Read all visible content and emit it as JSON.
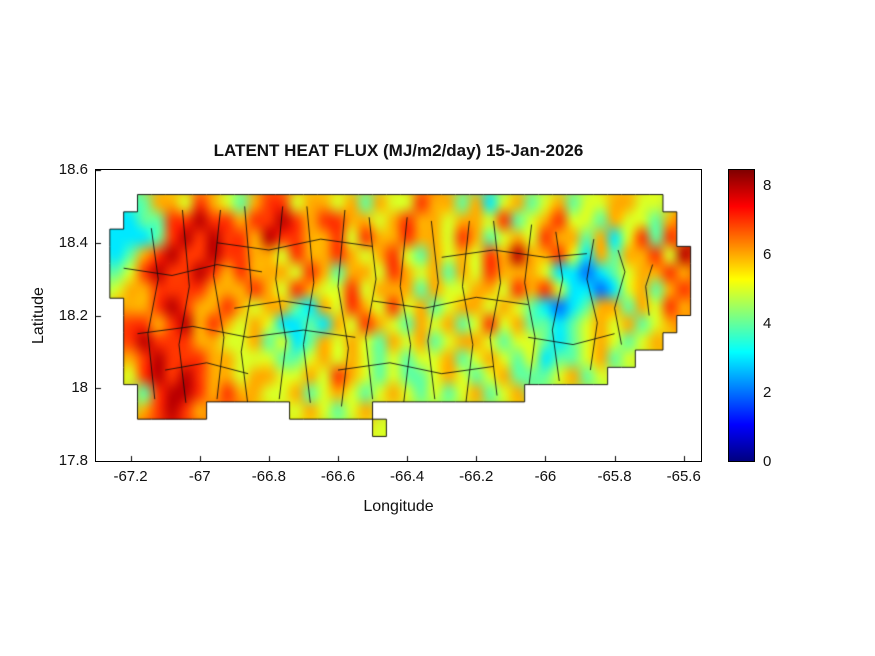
{
  "chart_data": {
    "type": "heatmap",
    "title": "LATENT HEAT FLUX (MJ/m2/day) 15-Jan-2026",
    "xlabel": "Longitude",
    "ylabel": "Latitude",
    "xlim": [
      -67.3,
      -65.55
    ],
    "ylim": [
      17.8,
      18.6
    ],
    "xticks": [
      -67.2,
      -67.0,
      -66.8,
      -66.6,
      -66.4,
      -66.2,
      -66.0,
      -65.8,
      -65.6
    ],
    "xtick_labels": [
      "-67.2",
      "-67",
      "-66.8",
      "-66.6",
      "-66.4",
      "-66.2",
      "-66",
      "-65.8",
      "-65.6"
    ],
    "yticks": [
      17.8,
      18.0,
      18.2,
      18.4,
      18.6
    ],
    "ytick_labels": [
      "17.8",
      "18",
      "18.2",
      "18.4",
      "18.6"
    ],
    "colorbar": {
      "min": 0,
      "max": 8.5,
      "ticks": [
        0,
        2,
        4,
        6,
        8
      ],
      "tick_labels": [
        "0",
        "2",
        "4",
        "6",
        "8"
      ]
    },
    "colormap": "jet",
    "colormap_stops": [
      [
        0,
        0,
        0,
        0.5
      ],
      [
        0.125,
        0,
        0,
        1
      ],
      [
        0.375,
        0,
        1,
        1
      ],
      [
        0.625,
        1,
        1,
        0
      ],
      [
        0.875,
        1,
        0,
        0
      ],
      [
        1,
        0.5,
        0,
        0
      ]
    ],
    "grid": {
      "lon_min": -67.3,
      "lon_max": -65.54,
      "lat_min": 17.82,
      "lat_max": 18.58,
      "cols": 44,
      "rows": 16,
      "encoding": "each char = flux value 0-8 (MJ/m2/day), '.' or missing = sea/no data, row 0 = northernmost",
      "values": [
        "",
        "...46657654677566564655766463564564556655",
        "..3447787767787677665676656657456755465546",
        ".33347878776877667576676657645657664635747",
        ".346787787766576676567546565768667536466758",
        ".457877876766657646657656465766653323456676",
        ".566777766676576557566646556657675332356467",
        "..66787667656643657657564566565432346646576",
        "..7767867656533436576546564575644345656456",
        "..787776655645346565465645665455434565456",
        "..6787776655544565654545564565453445645",
        "..57878766566556576545445654564445645",
        "...4788767665564565456545456456",
        "...67876......565456",
        "....................5",
        ""
      ]
    },
    "boundaries": [
      [
        [
          -67.13,
          17.97
        ],
        [
          -67.15,
          18.15
        ],
        [
          -67.12,
          18.3
        ],
        [
          -67.14,
          18.44
        ]
      ],
      [
        [
          -67.04,
          17.96
        ],
        [
          -67.06,
          18.12
        ],
        [
          -67.03,
          18.28
        ],
        [
          -67.05,
          18.49
        ]
      ],
      [
        [
          -66.95,
          17.97
        ],
        [
          -66.93,
          18.14
        ],
        [
          -66.96,
          18.31
        ],
        [
          -66.94,
          18.49
        ]
      ],
      [
        [
          -66.86,
          17.95
        ],
        [
          -66.88,
          18.1
        ],
        [
          -66.85,
          18.27
        ],
        [
          -66.87,
          18.5
        ]
      ],
      [
        [
          -66.77,
          17.97
        ],
        [
          -66.75,
          18.13
        ],
        [
          -66.78,
          18.3
        ],
        [
          -66.76,
          18.5
        ]
      ],
      [
        [
          -66.68,
          17.96
        ],
        [
          -66.7,
          18.12
        ],
        [
          -66.67,
          18.29
        ],
        [
          -66.69,
          18.5
        ]
      ],
      [
        [
          -66.59,
          17.95
        ],
        [
          -66.57,
          18.11
        ],
        [
          -66.6,
          18.28
        ],
        [
          -66.58,
          18.49
        ]
      ],
      [
        [
          -66.5,
          17.97
        ],
        [
          -66.52,
          18.14
        ],
        [
          -66.49,
          18.3
        ],
        [
          -66.51,
          18.47
        ]
      ],
      [
        [
          -66.41,
          17.96
        ],
        [
          -66.39,
          18.12
        ],
        [
          -66.42,
          18.28
        ],
        [
          -66.4,
          18.47
        ]
      ],
      [
        [
          -66.32,
          17.97
        ],
        [
          -66.34,
          18.13
        ],
        [
          -66.31,
          18.29
        ],
        [
          -66.33,
          18.46
        ]
      ],
      [
        [
          -66.23,
          17.96
        ],
        [
          -66.21,
          18.12
        ],
        [
          -66.24,
          18.28
        ],
        [
          -66.22,
          18.46
        ]
      ],
      [
        [
          -66.14,
          17.98
        ],
        [
          -66.16,
          18.14
        ],
        [
          -66.13,
          18.29
        ],
        [
          -66.15,
          18.46
        ]
      ],
      [
        [
          -66.05,
          17.99
        ],
        [
          -66.03,
          18.14
        ],
        [
          -66.06,
          18.29
        ],
        [
          -66.04,
          18.45
        ]
      ],
      [
        [
          -65.96,
          18.02
        ],
        [
          -65.98,
          18.16
        ],
        [
          -65.95,
          18.3
        ],
        [
          -65.97,
          18.43
        ]
      ],
      [
        [
          -65.87,
          18.05
        ],
        [
          -65.85,
          18.18
        ],
        [
          -65.88,
          18.3
        ],
        [
          -65.86,
          18.41
        ]
      ],
      [
        [
          -65.78,
          18.12
        ],
        [
          -65.8,
          18.22
        ],
        [
          -65.77,
          18.32
        ],
        [
          -65.79,
          18.38
        ]
      ],
      [
        [
          -65.7,
          18.2
        ],
        [
          -65.71,
          18.28
        ],
        [
          -65.69,
          18.34
        ]
      ],
      [
        [
          -67.22,
          18.33
        ],
        [
          -67.08,
          18.31
        ],
        [
          -66.95,
          18.34
        ],
        [
          -66.82,
          18.32
        ]
      ],
      [
        [
          -67.18,
          18.15
        ],
        [
          -67.02,
          18.17
        ],
        [
          -66.86,
          18.14
        ],
        [
          -66.7,
          18.16
        ],
        [
          -66.55,
          18.14
        ]
      ],
      [
        [
          -66.95,
          18.4
        ],
        [
          -66.8,
          18.38
        ],
        [
          -66.65,
          18.41
        ],
        [
          -66.5,
          18.39
        ]
      ],
      [
        [
          -66.6,
          18.05
        ],
        [
          -66.45,
          18.07
        ],
        [
          -66.3,
          18.04
        ],
        [
          -66.15,
          18.06
        ]
      ],
      [
        [
          -66.5,
          18.24
        ],
        [
          -66.35,
          18.22
        ],
        [
          -66.2,
          18.25
        ],
        [
          -66.05,
          18.23
        ]
      ],
      [
        [
          -66.3,
          18.36
        ],
        [
          -66.15,
          18.38
        ],
        [
          -66.0,
          18.36
        ],
        [
          -65.88,
          18.37
        ]
      ],
      [
        [
          -66.05,
          18.14
        ],
        [
          -65.92,
          18.12
        ],
        [
          -65.8,
          18.15
        ]
      ],
      [
        [
          -67.1,
          18.05
        ],
        [
          -66.98,
          18.07
        ],
        [
          -66.86,
          18.04
        ]
      ],
      [
        [
          -66.9,
          18.22
        ],
        [
          -66.76,
          18.24
        ],
        [
          -66.62,
          18.22
        ]
      ]
    ]
  }
}
